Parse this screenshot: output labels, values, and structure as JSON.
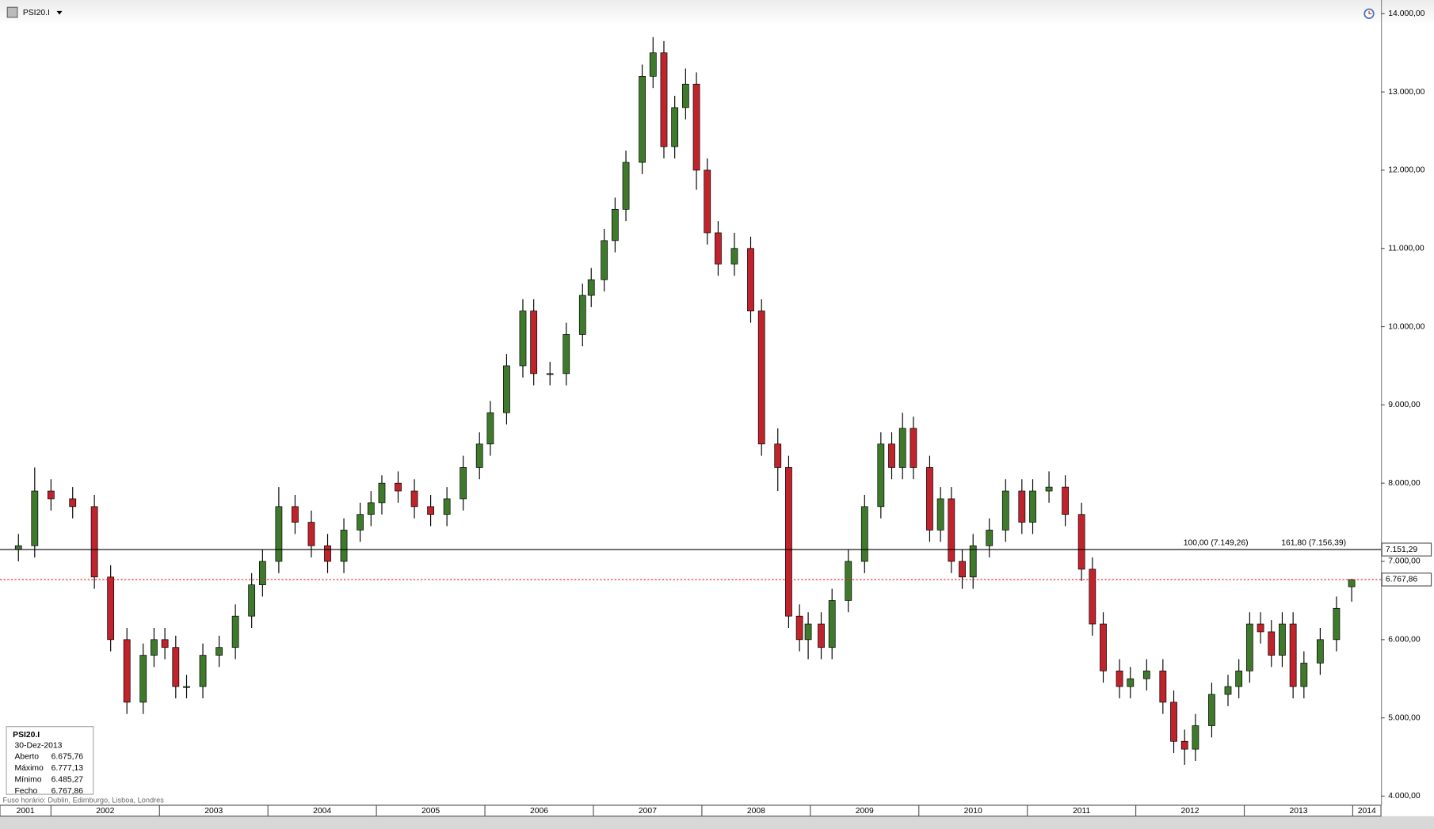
{
  "chart_data": {
    "type": "candlestick",
    "title": "PSI20.I",
    "x": [
      2001.7,
      2001.85,
      2002.0,
      2002.2,
      2002.4,
      2002.55,
      2002.7,
      2002.85,
      2002.95,
      2003.05,
      2003.15,
      2003.25,
      2003.4,
      2003.55,
      2003.7,
      2003.85,
      2003.95,
      2004.1,
      2004.25,
      2004.4,
      2004.55,
      2004.7,
      2004.85,
      2004.95,
      2005.05,
      2005.2,
      2005.35,
      2005.5,
      2005.65,
      2005.8,
      2005.95,
      2006.05,
      2006.2,
      2006.35,
      2006.45,
      2006.6,
      2006.75,
      2006.9,
      2006.98,
      2007.1,
      2007.2,
      2007.3,
      2007.45,
      2007.55,
      2007.65,
      2007.75,
      2007.85,
      2007.95,
      2008.05,
      2008.15,
      2008.3,
      2008.45,
      2008.55,
      2008.7,
      2008.8,
      2008.9,
      2008.98,
      2009.1,
      2009.2,
      2009.35,
      2009.5,
      2009.65,
      2009.75,
      2009.85,
      2009.95,
      2010.1,
      2010.2,
      2010.3,
      2010.4,
      2010.5,
      2010.65,
      2010.8,
      2010.95,
      2011.05,
      2011.2,
      2011.35,
      2011.5,
      2011.6,
      2011.7,
      2011.85,
      2011.95,
      2012.1,
      2012.25,
      2012.35,
      2012.45,
      2012.55,
      2012.7,
      2012.85,
      2012.95,
      2013.05,
      2013.15,
      2013.25,
      2013.35,
      2013.45,
      2013.55,
      2013.7,
      2013.85,
      2013.99
    ],
    "open": [
      7150,
      7200,
      7900,
      7800,
      7700,
      6800,
      6000,
      5200,
      5800,
      6000,
      5900,
      5400,
      5400,
      5800,
      5900,
      6300,
      6700,
      7000,
      7700,
      7500,
      7200,
      7000,
      7400,
      7600,
      7750,
      8000,
      7900,
      7700,
      7600,
      7800,
      8200,
      8500,
      8900,
      9500,
      10200,
      9400,
      9400,
      9900,
      10400,
      10600,
      11100,
      11500,
      12100,
      13200,
      13500,
      12300,
      12800,
      13100,
      12000,
      11200,
      10800,
      11000,
      10200,
      8500,
      8200,
      6300,
      6000,
      6200,
      5900,
      6500,
      7000,
      7700,
      8500,
      8200,
      8700,
      8200,
      7400,
      7800,
      7000,
      6800,
      7200,
      7400,
      7900,
      7500,
      7900,
      7950,
      7600,
      6900,
      6200,
      5600,
      5400,
      5500,
      5600,
      5200,
      4700,
      4600,
      4900,
      5300,
      5400,
      5600,
      6200,
      6100,
      5800,
      6200,
      5400,
      5700,
      6000,
      6675.76
    ],
    "high": [
      7350,
      8200,
      8050,
      7950,
      7850,
      6950,
      6150,
      5950,
      6150,
      6150,
      6050,
      5550,
      5950,
      6050,
      6450,
      6850,
      7150,
      7950,
      7850,
      7650,
      7350,
      7550,
      7750,
      7900,
      8100,
      8150,
      8050,
      7850,
      7950,
      8350,
      8650,
      9050,
      9650,
      10350,
      10350,
      9550,
      10050,
      10550,
      10750,
      11250,
      11650,
      12250,
      13350,
      13700,
      13650,
      12950,
      13300,
      13250,
      12150,
      11350,
      11200,
      11150,
      10350,
      8700,
      8350,
      6450,
      6350,
      6350,
      6650,
      7150,
      7850,
      8650,
      8650,
      8900,
      8850,
      8350,
      7950,
      7950,
      7150,
      7350,
      7550,
      8050,
      8050,
      8050,
      8150,
      8100,
      7750,
      7050,
      6350,
      5750,
      5650,
      5750,
      5750,
      5350,
      4850,
      5050,
      5450,
      5550,
      5750,
      6350,
      6350,
      6250,
      6350,
      6350,
      5850,
      6150,
      6550,
      6777.13
    ],
    "low": [
      7000,
      7050,
      7650,
      7550,
      6650,
      5850,
      5050,
      5050,
      5650,
      5750,
      5250,
      5250,
      5250,
      5650,
      5750,
      6150,
      6550,
      6850,
      7350,
      7050,
      6850,
      6850,
      7250,
      7450,
      7600,
      7750,
      7550,
      7450,
      7450,
      7650,
      8050,
      8350,
      8750,
      9350,
      9250,
      9250,
      9250,
      9750,
      10250,
      10450,
      10950,
      11350,
      11950,
      13050,
      12150,
      12150,
      12650,
      11750,
      11050,
      10650,
      10650,
      10050,
      8350,
      7900,
      6150,
      5850,
      5750,
      5750,
      5750,
      6350,
      6850,
      7550,
      8050,
      8050,
      8050,
      7250,
      7250,
      6850,
      6650,
      6650,
      7050,
      7250,
      7350,
      7350,
      7750,
      7450,
      6750,
      6050,
      5450,
      5250,
      5250,
      5350,
      5050,
      4550,
      4400,
      4450,
      4750,
      5150,
      5250,
      5450,
      5950,
      5650,
      5650,
      5250,
      5250,
      5550,
      5850,
      6485.27
    ],
    "close": [
      7200,
      7900,
      7800,
      7700,
      6800,
      6000,
      5200,
      5800,
      6000,
      5900,
      5400,
      5400,
      5800,
      5900,
      6300,
      6700,
      7000,
      7700,
      7500,
      7200,
      7000,
      7400,
      7600,
      7750,
      8000,
      7900,
      7700,
      7600,
      7800,
      8200,
      8500,
      8900,
      9500,
      10200,
      9400,
      9400,
      9900,
      10400,
      10600,
      11100,
      11500,
      12100,
      13200,
      13500,
      12300,
      12800,
      13100,
      12000,
      11200,
      10800,
      11000,
      10200,
      8500,
      8200,
      6300,
      6000,
      6200,
      5900,
      6500,
      7000,
      7700,
      8500,
      8200,
      8700,
      8200,
      7400,
      7800,
      7000,
      6800,
      7200,
      7400,
      7900,
      7500,
      7900,
      7950,
      7600,
      6900,
      6200,
      5600,
      5400,
      5500,
      5600,
      5200,
      4700,
      4600,
      4900,
      5300,
      5400,
      5600,
      6200,
      6100,
      5800,
      6200,
      5400,
      5700,
      6000,
      6400,
      6767.86
    ],
    "up_color": "#3f7a2c",
    "down_color": "#c0232b",
    "xlim": [
      2001.53,
      2014.26
    ],
    "xticks": [
      2001,
      2002,
      2003,
      2004,
      2005,
      2006,
      2007,
      2008,
      2009,
      2010,
      2011,
      2012,
      2013,
      2014
    ],
    "ylim": [
      3895,
      14175
    ],
    "yticks": [
      {
        "value": 4000,
        "label": "4.000,00"
      },
      {
        "value": 5000,
        "label": "5.000,00"
      },
      {
        "value": 6000,
        "label": "6.000,00"
      },
      {
        "value": 7000,
        "label": "7.000,00"
      },
      {
        "value": 8000,
        "label": "8.000,00"
      },
      {
        "value": 9000,
        "label": "9.000,00"
      },
      {
        "value": 10000,
        "label": "10.000,00"
      },
      {
        "value": 11000,
        "label": "11.000,00"
      },
      {
        "value": 12000,
        "label": "12.000,00"
      },
      {
        "value": 13000,
        "label": "13.000,00"
      },
      {
        "value": 14000,
        "label": "14.000,00"
      }
    ],
    "hlines": [
      {
        "value": 7151.29,
        "label": "7.151,29",
        "color": "#000000",
        "style": "solid"
      },
      {
        "value": 6767.86,
        "label": "6.767,86",
        "color": "#e02020",
        "style": "dotted"
      }
    ],
    "annotations": [
      {
        "text": "100,00 (7.149,26)",
        "color": "#1a1ad0"
      },
      {
        "text": "161,80 (7.156,39)",
        "color": "#d06010"
      }
    ],
    "info": {
      "symbol": "PSI20.I",
      "date": "30-Dez-2013",
      "rows": [
        {
          "label": "Aberto",
          "value": "6.675,76"
        },
        {
          "label": "Máximo",
          "value": "6.777,13"
        },
        {
          "label": "Mínimo",
          "value": "6.485,27"
        },
        {
          "label": "Fecho",
          "value": "6.767,86"
        }
      ]
    },
    "timezone": "Fuso horário: Dublin, Edimburgo, Lisboa, Londres"
  }
}
